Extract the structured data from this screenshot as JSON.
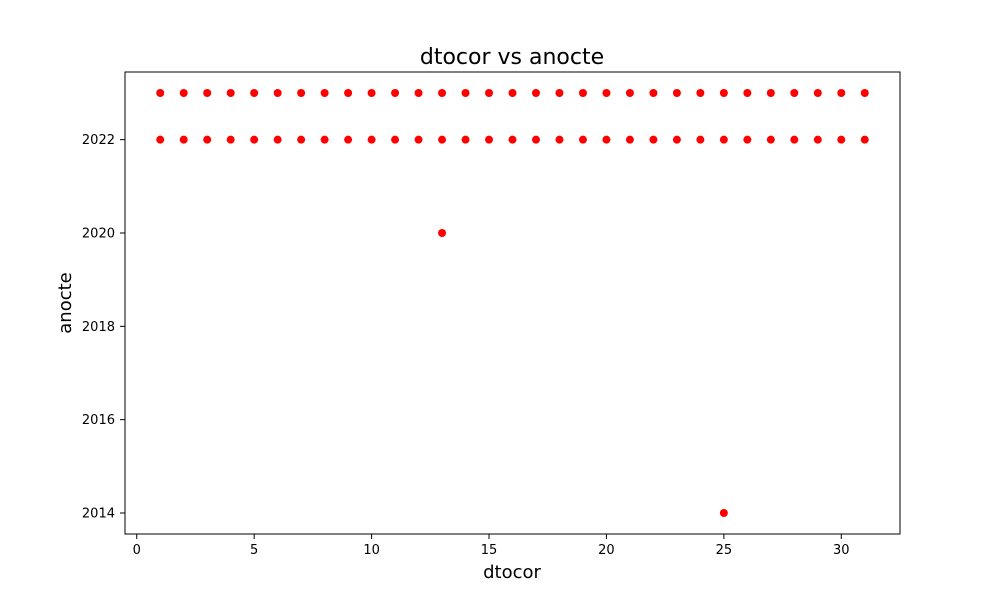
{
  "chart_data": {
    "type": "scatter",
    "title": "dtocor vs anocte",
    "xlabel": "dtocor",
    "ylabel": "anocte",
    "xlim": [
      -0.5,
      32.5
    ],
    "ylim": [
      2013.55,
      2023.45
    ],
    "xticks": [
      0,
      5,
      10,
      15,
      20,
      25,
      30
    ],
    "yticks": [
      2014,
      2016,
      2018,
      2020,
      2022
    ],
    "grid": false,
    "legend": "none",
    "marker_color": "#ff0000",
    "series": [
      {
        "points": [
          [
            1,
            2023
          ],
          [
            2,
            2023
          ],
          [
            3,
            2023
          ],
          [
            4,
            2023
          ],
          [
            5,
            2023
          ],
          [
            6,
            2023
          ],
          [
            7,
            2023
          ],
          [
            8,
            2023
          ],
          [
            9,
            2023
          ],
          [
            10,
            2023
          ],
          [
            11,
            2023
          ],
          [
            12,
            2023
          ],
          [
            13,
            2023
          ],
          [
            14,
            2023
          ],
          [
            15,
            2023
          ],
          [
            16,
            2023
          ],
          [
            17,
            2023
          ],
          [
            18,
            2023
          ],
          [
            19,
            2023
          ],
          [
            20,
            2023
          ],
          [
            21,
            2023
          ],
          [
            22,
            2023
          ],
          [
            23,
            2023
          ],
          [
            24,
            2023
          ],
          [
            25,
            2023
          ],
          [
            26,
            2023
          ],
          [
            27,
            2023
          ],
          [
            28,
            2023
          ],
          [
            29,
            2023
          ],
          [
            30,
            2023
          ],
          [
            31,
            2023
          ],
          [
            1,
            2022
          ],
          [
            2,
            2022
          ],
          [
            3,
            2022
          ],
          [
            4,
            2022
          ],
          [
            5,
            2022
          ],
          [
            6,
            2022
          ],
          [
            7,
            2022
          ],
          [
            8,
            2022
          ],
          [
            9,
            2022
          ],
          [
            10,
            2022
          ],
          [
            11,
            2022
          ],
          [
            12,
            2022
          ],
          [
            13,
            2022
          ],
          [
            14,
            2022
          ],
          [
            15,
            2022
          ],
          [
            16,
            2022
          ],
          [
            17,
            2022
          ],
          [
            18,
            2022
          ],
          [
            19,
            2022
          ],
          [
            20,
            2022
          ],
          [
            21,
            2022
          ],
          [
            22,
            2022
          ],
          [
            23,
            2022
          ],
          [
            24,
            2022
          ],
          [
            25,
            2022
          ],
          [
            26,
            2022
          ],
          [
            27,
            2022
          ],
          [
            28,
            2022
          ],
          [
            29,
            2022
          ],
          [
            30,
            2022
          ],
          [
            31,
            2022
          ],
          [
            13,
            2020
          ],
          [
            25,
            2014
          ]
        ]
      }
    ]
  }
}
